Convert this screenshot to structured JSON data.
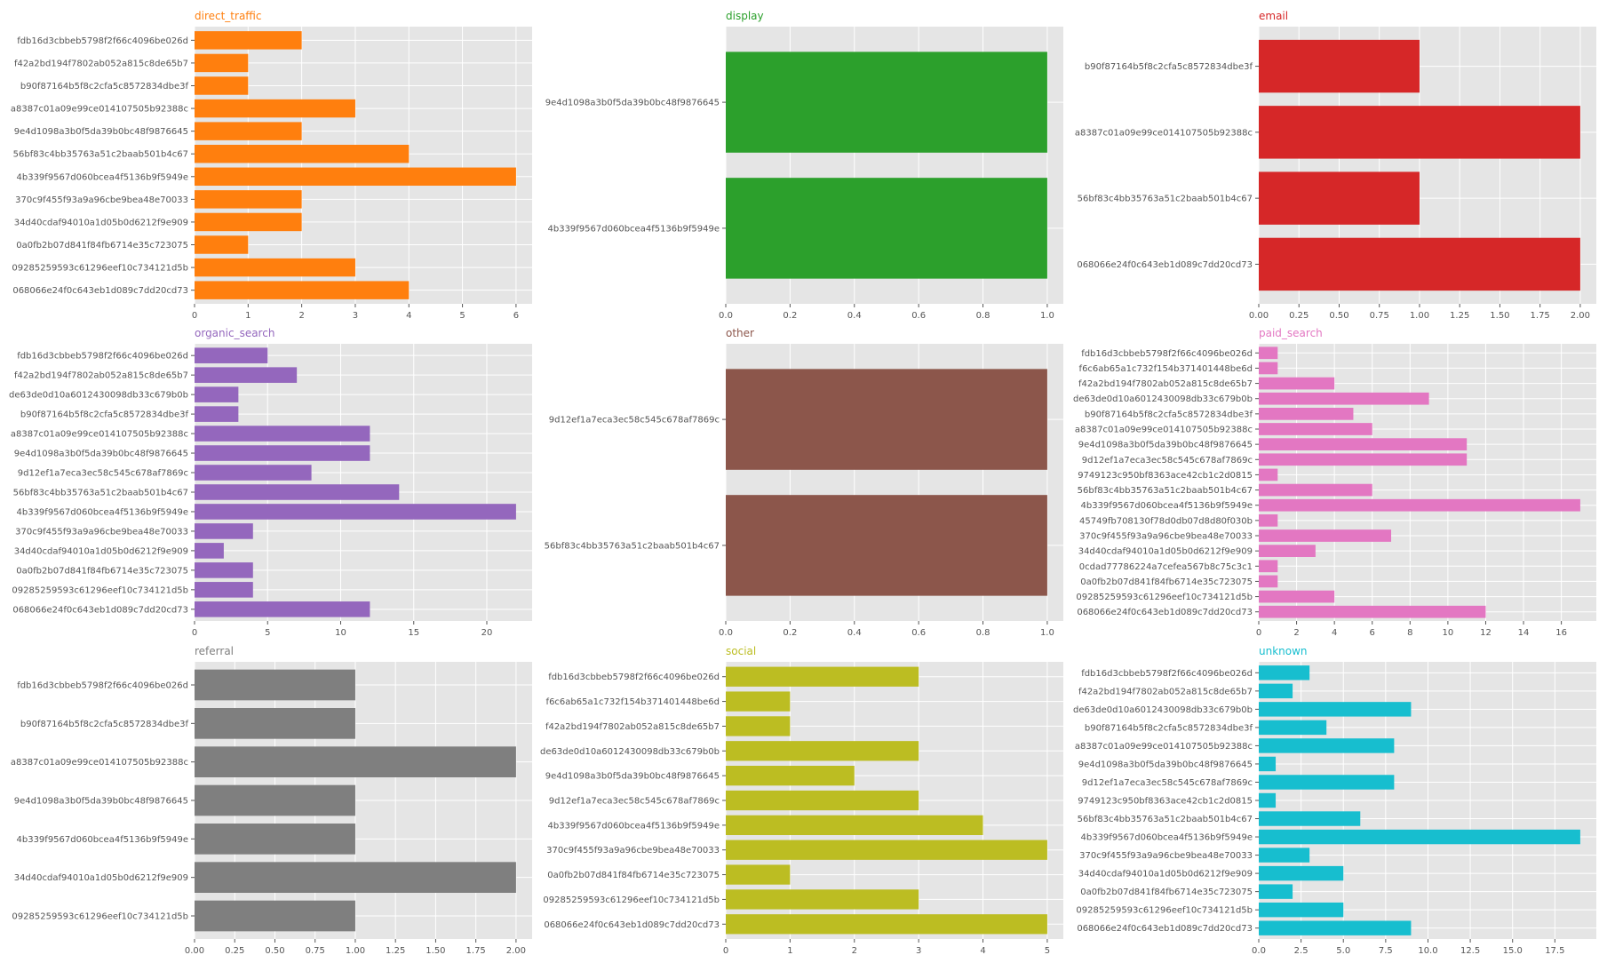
{
  "chart_data": [
    {
      "type": "bar",
      "orientation": "horizontal",
      "title": "direct_traffic",
      "color": "#ff7f0e",
      "categories": [
        "fdb16d3cbbeb5798f2f66c4096be026d",
        "f42a2bd194f7802ab052a815c8de65b7",
        "b90f87164b5f8c2cfa5c8572834dbe3f",
        "a8387c01a09e99ce014107505b92388c",
        "9e4d1098a3b0f5da39b0bc48f9876645",
        "56bf83c4bb35763a51c2baab501b4c67",
        "4b339f9567d060bcea4f5136b9f5949e",
        "370c9f455f93a9a96cbe9bea48e70033",
        "34d40cdaf94010a1d05b0d6212f9e909",
        "0a0fb2b07d841f84fb6714e35c723075",
        "09285259593c61296eef10c734121d5b",
        "068066e24f0c643eb1d089c7dd20cd73"
      ],
      "values": [
        2,
        1,
        1,
        3,
        2,
        4,
        6,
        2,
        2,
        1,
        3,
        4
      ],
      "xlim": [
        0,
        6.3
      ],
      "xticks": [
        0,
        1,
        2,
        3,
        4,
        5,
        6
      ],
      "xtick_labels": [
        "0",
        "1",
        "2",
        "3",
        "4",
        "5",
        "6"
      ],
      "grid": true
    },
    {
      "type": "bar",
      "orientation": "horizontal",
      "title": "display",
      "color": "#2ca02c",
      "categories": [
        "9e4d1098a3b0f5da39b0bc48f9876645",
        "4b339f9567d060bcea4f5136b9f5949e"
      ],
      "values": [
        1,
        1
      ],
      "xlim": [
        0,
        1.05
      ],
      "xticks": [
        0,
        0.2,
        0.4,
        0.6,
        0.8,
        1.0
      ],
      "xtick_labels": [
        "0.0",
        "0.2",
        "0.4",
        "0.6",
        "0.8",
        "1.0"
      ],
      "grid": true
    },
    {
      "type": "bar",
      "orientation": "horizontal",
      "title": "email",
      "color": "#d62728",
      "categories": [
        "b90f87164b5f8c2cfa5c8572834dbe3f",
        "a8387c01a09e99ce014107505b92388c",
        "56bf83c4bb35763a51c2baab501b4c67",
        "068066e24f0c643eb1d089c7dd20cd73"
      ],
      "values": [
        1,
        2,
        1,
        2
      ],
      "xlim": [
        0,
        2.1
      ],
      "xticks": [
        0,
        0.25,
        0.5,
        0.75,
        1.0,
        1.25,
        1.5,
        1.75,
        2.0
      ],
      "xtick_labels": [
        "0.00",
        "0.25",
        "0.50",
        "0.75",
        "1.00",
        "1.25",
        "1.50",
        "1.75",
        "2.00"
      ],
      "grid": true
    },
    {
      "type": "bar",
      "orientation": "horizontal",
      "title": "organic_search",
      "color": "#9467bd",
      "categories": [
        "fdb16d3cbbeb5798f2f66c4096be026d",
        "f42a2bd194f7802ab052a815c8de65b7",
        "de63de0d10a6012430098db33c679b0b",
        "b90f87164b5f8c2cfa5c8572834dbe3f",
        "a8387c01a09e99ce014107505b92388c",
        "9e4d1098a3b0f5da39b0bc48f9876645",
        "9d12ef1a7eca3ec58c545c678af7869c",
        "56bf83c4bb35763a51c2baab501b4c67",
        "4b339f9567d060bcea4f5136b9f5949e",
        "370c9f455f93a9a96cbe9bea48e70033",
        "34d40cdaf94010a1d05b0d6212f9e909",
        "0a0fb2b07d841f84fb6714e35c723075",
        "09285259593c61296eef10c734121d5b",
        "068066e24f0c643eb1d089c7dd20cd73"
      ],
      "values": [
        5,
        7,
        3,
        3,
        12,
        12,
        8,
        14,
        22,
        4,
        2,
        4,
        4,
        12
      ],
      "xlim": [
        0,
        23.1
      ],
      "xticks": [
        0,
        5,
        10,
        15,
        20
      ],
      "xtick_labels": [
        "0",
        "5",
        "10",
        "15",
        "20"
      ],
      "grid": true
    },
    {
      "type": "bar",
      "orientation": "horizontal",
      "title": "other",
      "color": "#8c564b",
      "categories": [
        "9d12ef1a7eca3ec58c545c678af7869c",
        "56bf83c4bb35763a51c2baab501b4c67"
      ],
      "values": [
        1,
        1
      ],
      "xlim": [
        0,
        1.05
      ],
      "xticks": [
        0,
        0.2,
        0.4,
        0.6,
        0.8,
        1.0
      ],
      "xtick_labels": [
        "0.0",
        "0.2",
        "0.4",
        "0.6",
        "0.8",
        "1.0"
      ],
      "grid": true
    },
    {
      "type": "bar",
      "orientation": "horizontal",
      "title": "paid_search",
      "color": "#e377c2",
      "categories": [
        "fdb16d3cbbeb5798f2f66c4096be026d",
        "f6c6ab65a1c732f154b371401448be6d",
        "f42a2bd194f7802ab052a815c8de65b7",
        "de63de0d10a6012430098db33c679b0b",
        "b90f87164b5f8c2cfa5c8572834dbe3f",
        "a8387c01a09e99ce014107505b92388c",
        "9e4d1098a3b0f5da39b0bc48f9876645",
        "9d12ef1a7eca3ec58c545c678af7869c",
        "9749123c950bf8363ace42cb1c2d0815",
        "56bf83c4bb35763a51c2baab501b4c67",
        "4b339f9567d060bcea4f5136b9f5949e",
        "45749fb708130f78d0db07d8d80f030b",
        "370c9f455f93a9a96cbe9bea48e70033",
        "34d40cdaf94010a1d05b0d6212f9e909",
        "0cdad77786224a7cefea567b8c75c3c1",
        "0a0fb2b07d841f84fb6714e35c723075",
        "09285259593c61296eef10c734121d5b",
        "068066e24f0c643eb1d089c7dd20cd73"
      ],
      "values": [
        1,
        1,
        4,
        9,
        5,
        6,
        11,
        11,
        1,
        6,
        17,
        1,
        7,
        3,
        1,
        1,
        4,
        12
      ],
      "xlim": [
        0,
        17.85
      ],
      "xticks": [
        0,
        2,
        4,
        6,
        8,
        10,
        12,
        14,
        16
      ],
      "xtick_labels": [
        "0",
        "2",
        "4",
        "6",
        "8",
        "10",
        "12",
        "14",
        "16"
      ],
      "grid": true
    },
    {
      "type": "bar",
      "orientation": "horizontal",
      "title": "referral",
      "color": "#7f7f7f",
      "categories": [
        "fdb16d3cbbeb5798f2f66c4096be026d",
        "b90f87164b5f8c2cfa5c8572834dbe3f",
        "a8387c01a09e99ce014107505b92388c",
        "9e4d1098a3b0f5da39b0bc48f9876645",
        "4b339f9567d060bcea4f5136b9f5949e",
        "34d40cdaf94010a1d05b0d6212f9e909",
        "09285259593c61296eef10c734121d5b"
      ],
      "values": [
        1,
        1,
        2,
        1,
        1,
        2,
        1
      ],
      "xlim": [
        0,
        2.1
      ],
      "xticks": [
        0,
        0.25,
        0.5,
        0.75,
        1.0,
        1.25,
        1.5,
        1.75,
        2.0
      ],
      "xtick_labels": [
        "0.00",
        "0.25",
        "0.50",
        "0.75",
        "1.00",
        "1.25",
        "1.50",
        "1.75",
        "2.00"
      ],
      "grid": true
    },
    {
      "type": "bar",
      "orientation": "horizontal",
      "title": "social",
      "color": "#bcbd22",
      "categories": [
        "fdb16d3cbbeb5798f2f66c4096be026d",
        "f6c6ab65a1c732f154b371401448be6d",
        "f42a2bd194f7802ab052a815c8de65b7",
        "de63de0d10a6012430098db33c679b0b",
        "9e4d1098a3b0f5da39b0bc48f9876645",
        "9d12ef1a7eca3ec58c545c678af7869c",
        "4b339f9567d060bcea4f5136b9f5949e",
        "370c9f455f93a9a96cbe9bea48e70033",
        "0a0fb2b07d841f84fb6714e35c723075",
        "09285259593c61296eef10c734121d5b",
        "068066e24f0c643eb1d089c7dd20cd73"
      ],
      "values": [
        3,
        1,
        1,
        3,
        2,
        3,
        4,
        5,
        1,
        3,
        5
      ],
      "xlim": [
        0,
        5.25
      ],
      "xticks": [
        0,
        1,
        2,
        3,
        4,
        5
      ],
      "xtick_labels": [
        "0",
        "1",
        "2",
        "3",
        "4",
        "5"
      ],
      "grid": true
    },
    {
      "type": "bar",
      "orientation": "horizontal",
      "title": "unknown",
      "color": "#17becf",
      "categories": [
        "fdb16d3cbbeb5798f2f66c4096be026d",
        "f42a2bd194f7802ab052a815c8de65b7",
        "de63de0d10a6012430098db33c679b0b",
        "b90f87164b5f8c2cfa5c8572834dbe3f",
        "a8387c01a09e99ce014107505b92388c",
        "9e4d1098a3b0f5da39b0bc48f9876645",
        "9d12ef1a7eca3ec58c545c678af7869c",
        "9749123c950bf8363ace42cb1c2d0815",
        "56bf83c4bb35763a51c2baab501b4c67",
        "4b339f9567d060bcea4f5136b9f5949e",
        "370c9f455f93a9a96cbe9bea48e70033",
        "34d40cdaf94010a1d05b0d6212f9e909",
        "0a0fb2b07d841f84fb6714e35c723075",
        "09285259593c61296eef10c734121d5b",
        "068066e24f0c643eb1d089c7dd20cd73"
      ],
      "values": [
        3,
        2,
        9,
        4,
        8,
        1,
        8,
        1,
        6,
        19,
        3,
        5,
        2,
        5,
        9
      ],
      "xlim": [
        0,
        19.95
      ],
      "xticks": [
        0,
        2.5,
        5,
        7.5,
        10,
        12.5,
        15,
        17.5
      ],
      "xtick_labels": [
        "0.0",
        "2.5",
        "5.0",
        "7.5",
        "10.0",
        "12.5",
        "15.0",
        "17.5"
      ],
      "grid": true
    }
  ]
}
